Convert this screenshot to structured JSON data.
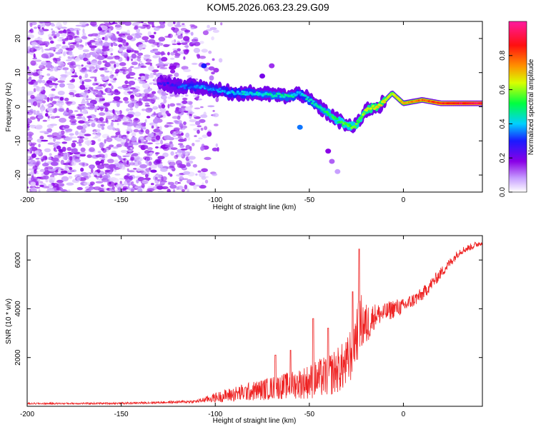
{
  "title": "KOM5.2026.063.23.29.G09",
  "chart_data": [
    {
      "type": "heatmap",
      "name": "spectrogram",
      "xlabel": "Height of straight line (km)",
      "ylabel": "Frequency (Hz)",
      "xlim": [
        -200,
        42
      ],
      "ylim": [
        -25,
        25
      ],
      "xticks": [
        -200,
        -150,
        -100,
        -50,
        0
      ],
      "yticks": [
        -20,
        -10,
        0,
        10,
        20
      ],
      "colorbar": {
        "label": "Normalized spectral amplitude",
        "range": [
          0,
          1
        ],
        "ticks": [
          "0.0",
          "0.2",
          "0.4",
          "0.6",
          "0.8"
        ],
        "colors": [
          "#ffffff",
          "#8a00e6",
          "#1a1aff",
          "#00d0ff",
          "#00ff00",
          "#ffff00",
          "#ff8000",
          "#ff0000",
          "#ff1aa0"
        ]
      },
      "ridge": [
        {
          "x": -130,
          "f": 7,
          "a": 0.22
        },
        {
          "x": -120,
          "f": 6,
          "a": 0.3
        },
        {
          "x": -110,
          "f": 6,
          "a": 0.35
        },
        {
          "x": -100,
          "f": 5,
          "a": 0.35
        },
        {
          "x": -90,
          "f": 4,
          "a": 0.4
        },
        {
          "x": -80,
          "f": 4,
          "a": 0.42
        },
        {
          "x": -70,
          "f": 3.5,
          "a": 0.45
        },
        {
          "x": -60,
          "f": 3,
          "a": 0.45
        },
        {
          "x": -55,
          "f": 4,
          "a": 0.4
        },
        {
          "x": -45,
          "f": 0,
          "a": 0.45
        },
        {
          "x": -40,
          "f": -2,
          "a": 0.5
        },
        {
          "x": -32,
          "f": -5,
          "a": 0.55
        },
        {
          "x": -26,
          "f": -6,
          "a": 0.55
        },
        {
          "x": -20,
          "f": -1,
          "a": 0.6
        },
        {
          "x": -12,
          "f": 0.5,
          "a": 0.65
        },
        {
          "x": -6,
          "f": 4,
          "a": 0.6
        },
        {
          "x": 0,
          "f": 1,
          "a": 0.72
        },
        {
          "x": 10,
          "f": 2,
          "a": 0.78
        },
        {
          "x": 20,
          "f": 1,
          "a": 0.85
        },
        {
          "x": 30,
          "f": 1,
          "a": 0.9
        },
        {
          "x": 42,
          "f": 1,
          "a": 0.92
        }
      ]
    },
    {
      "type": "line",
      "name": "snr",
      "xlabel": "Height of straight line (km)",
      "ylabel": "SNR (10 * v/v)",
      "xlim": [
        -200,
        42
      ],
      "ylim": [
        0,
        7000
      ],
      "xticks": [
        -200,
        -150,
        -100,
        -50,
        0
      ],
      "yticks": [
        2000,
        4000,
        6000
      ],
      "color": "#ee2222",
      "envelope": {
        "x": [
          -200,
          -150,
          -125,
          -110,
          -100,
          -90,
          -80,
          -70,
          -60,
          -50,
          -40,
          -30,
          -28,
          -25,
          -22,
          -20,
          -15,
          -10,
          -5,
          0,
          10,
          20,
          30,
          42
        ],
        "base": [
          100,
          110,
          150,
          180,
          300,
          400,
          500,
          600,
          700,
          800,
          1000,
          1400,
          1800,
          2600,
          3100,
          3000,
          3600,
          3700,
          3900,
          4000,
          4500,
          5400,
          6300,
          6700
        ],
        "noise": [
          40,
          50,
          60,
          80,
          250,
          400,
          500,
          600,
          700,
          900,
          1100,
          1300,
          1500,
          1500,
          1500,
          1200,
          600,
          500,
          500,
          400,
          350,
          300,
          200,
          150
        ]
      },
      "spikes": [
        {
          "x": -23.5,
          "y": 6450
        },
        {
          "x": -27,
          "y": 4700
        },
        {
          "x": -48,
          "y": 3600
        },
        {
          "x": -40,
          "y": 3200
        },
        {
          "x": -60,
          "y": 2300
        },
        {
          "x": -68,
          "y": 2100
        }
      ]
    }
  ]
}
